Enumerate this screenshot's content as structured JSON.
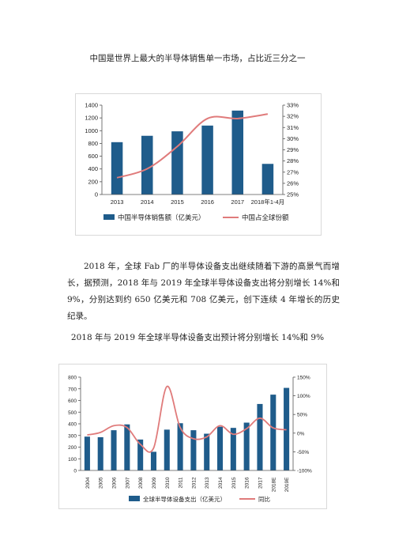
{
  "caption1": "中国是世界上最大的半导体销售单一市场，占比近三分之一",
  "paragraph": "2018 年，全球 Fab 厂的半导体设备支出继续随着下游的高景气而增长，据预测，2018 年与 2019 年全球半导体设备支出将分别增长 14%和 9%，分别达到约 650 亿美元和 708 亿美元，创下连续 4 年增长的历史纪录。",
  "caption2": "2018 年与 2019 年全球半导体设备支出预计将分别增长 14%和 9%",
  "colors": {
    "bar": "#1f5c8b",
    "line": "#e07b7b"
  },
  "chart_data": [
    {
      "type": "bar",
      "categories": [
        "2013",
        "2014",
        "2015",
        "2016",
        "2017",
        "2018年1-4月"
      ],
      "series": [
        {
          "name": "中国半导体销售额（亿美元）",
          "type": "bar",
          "axis": "left",
          "values": [
            820,
            920,
            990,
            1080,
            1315,
            480
          ]
        },
        {
          "name": "中国占全球份额",
          "type": "line",
          "axis": "right",
          "values": [
            26.5,
            27.3,
            29.3,
            31.8,
            31.8,
            32.2
          ]
        }
      ],
      "ylim": [
        0,
        1400
      ],
      "yticks": [
        "0",
        "200",
        "400",
        "600",
        "800",
        "1000",
        "1200",
        "1400"
      ],
      "y2lim": [
        25,
        33
      ],
      "y2ticks": [
        "25%",
        "26%",
        "27%",
        "28%",
        "29%",
        "30%",
        "31%",
        "32%",
        "33%"
      ],
      "legend": "bottom"
    },
    {
      "type": "bar",
      "categories": [
        "2004",
        "2005",
        "2006",
        "2007",
        "2008",
        "2009",
        "2010",
        "2011",
        "2012",
        "2013",
        "2014",
        "2015",
        "2016",
        "2017",
        "2018E",
        "2019E"
      ],
      "series": [
        {
          "name": "全球半导体设备支出（亿美元）",
          "type": "bar",
          "axis": "left",
          "values": [
            290,
            285,
            345,
            395,
            265,
            160,
            350,
            405,
            345,
            315,
            375,
            365,
            410,
            570,
            650,
            708
          ]
        },
        {
          "name": "同比",
          "type": "line",
          "axis": "right",
          "values": [
            -5,
            2,
            20,
            15,
            -30,
            -40,
            125,
            15,
            -15,
            -10,
            20,
            -3,
            12,
            40,
            14,
            9
          ]
        }
      ],
      "ylim": [
        0,
        800
      ],
      "yticks": [
        "0",
        "100",
        "200",
        "300",
        "400",
        "500",
        "600",
        "700",
        "800"
      ],
      "y2lim": [
        -100,
        150
      ],
      "y2ticks": [
        "-100%",
        "-50%",
        "0%",
        "50%",
        "100%",
        "150%"
      ],
      "legend": "bottom"
    }
  ]
}
